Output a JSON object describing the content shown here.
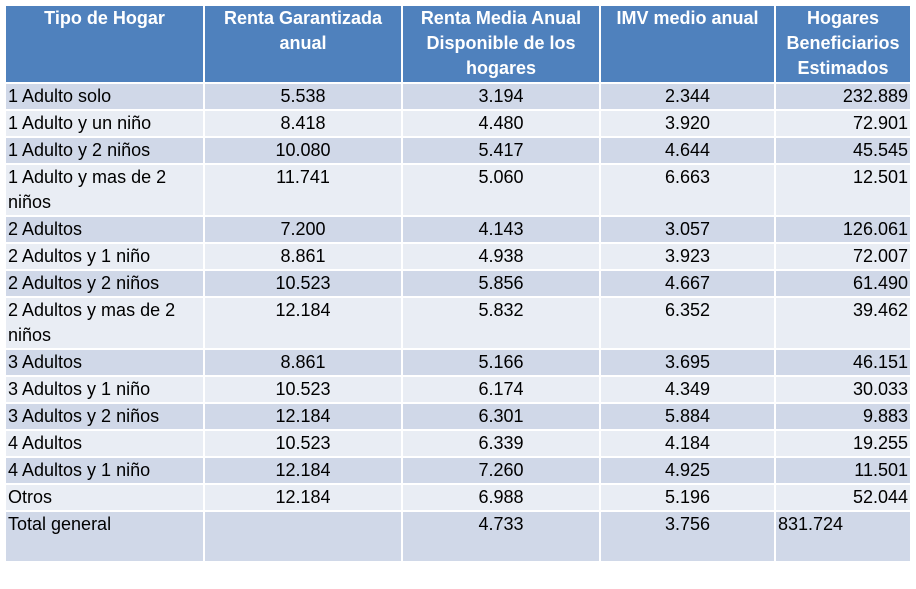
{
  "table": {
    "headers": [
      "Tipo de Hogar",
      "Renta Garantizada anual",
      "Renta Media Anual Disponible de los hogares",
      "IMV medio anual",
      "Hogares Beneficiarios Estimados"
    ],
    "header_color": "#4f81bd",
    "row_colors": [
      "#d0d8e8",
      "#e9edf4"
    ],
    "rows": [
      {
        "tipo": "1 Adulto solo",
        "renta_garantizada": "5.538",
        "renta_media": "3.194",
        "imv": "2.344",
        "hogares": "232.889"
      },
      {
        "tipo": "1 Adulto y un niño",
        "renta_garantizada": "8.418",
        "renta_media": "4.480",
        "imv": "3.920",
        "hogares": "72.901"
      },
      {
        "tipo": "1 Adulto y 2 niños",
        "renta_garantizada": "10.080",
        "renta_media": "5.417",
        "imv": "4.644",
        "hogares": "45.545"
      },
      {
        "tipo": "1 Adulto y mas de 2 niños",
        "renta_garantizada": "11.741",
        "renta_media": "5.060",
        "imv": "6.663",
        "hogares": "12.501"
      },
      {
        "tipo": "2 Adultos",
        "renta_garantizada": "7.200",
        "renta_media": "4.143",
        "imv": "3.057",
        "hogares": "126.061"
      },
      {
        "tipo": "2 Adultos y 1 niño",
        "renta_garantizada": "8.861",
        "renta_media": "4.938",
        "imv": "3.923",
        "hogares": "72.007"
      },
      {
        "tipo": "2 Adultos y 2 niños",
        "renta_garantizada": "10.523",
        "renta_media": "5.856",
        "imv": "4.667",
        "hogares": "61.490"
      },
      {
        "tipo": "2 Adultos y mas de 2 niños",
        "renta_garantizada": "12.184",
        "renta_media": "5.832",
        "imv": "6.352",
        "hogares": "39.462"
      },
      {
        "tipo": "3 Adultos",
        "renta_garantizada": "8.861",
        "renta_media": "5.166",
        "imv": "3.695",
        "hogares": "46.151"
      },
      {
        "tipo": "3 Adultos y 1 niño",
        "renta_garantizada": "10.523",
        "renta_media": "6.174",
        "imv": "4.349",
        "hogares": "30.033"
      },
      {
        "tipo": "3 Adultos y 2 niños",
        "renta_garantizada": "12.184",
        "renta_media": "6.301",
        "imv": "5.884",
        "hogares": "9.883"
      },
      {
        "tipo": "4 Adultos",
        "renta_garantizada": "10.523",
        "renta_media": "6.339",
        "imv": "4.184",
        "hogares": "19.255"
      },
      {
        "tipo": "4 Adultos y 1 niño",
        "renta_garantizada": "12.184",
        "renta_media": "7.260",
        "imv": "4.925",
        "hogares": "11.501"
      },
      {
        "tipo": "Otros",
        "renta_garantizada": "12.184",
        "renta_media": "6.988",
        "imv": "5.196",
        "hogares": "52.044"
      }
    ],
    "total": {
      "label": "Total general",
      "renta_garantizada": "",
      "renta_media": "4.733",
      "imv": "3.756",
      "hogares": "831.724"
    }
  }
}
